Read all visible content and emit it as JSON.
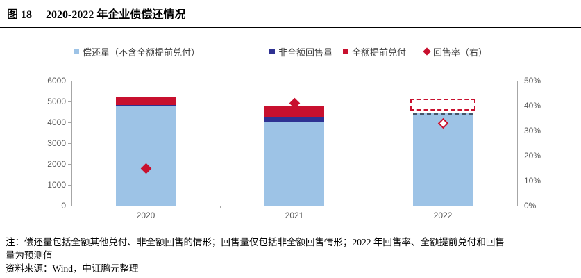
{
  "figure": {
    "label": "图 18",
    "title": "2020-2022 年企业债偿还情况"
  },
  "legend": [
    {
      "name": "偿还量（不含全额提前兑付）",
      "marker": "square",
      "color_key": "light_blue"
    },
    {
      "name": "非全额回售量",
      "marker": "square",
      "color_key": "navy"
    },
    {
      "name": "全额提前兑付",
      "marker": "square",
      "color_key": "red"
    },
    {
      "name": "回售率（右）",
      "marker": "diamond",
      "color_key": "red"
    }
  ],
  "colors": {
    "light_blue": "#9dc3e6",
    "navy": "#2e3192",
    "red": "#c8102e",
    "forecast_top_border": "#44546a",
    "axis_line": "#a6a6a6",
    "tick_text": "#595959"
  },
  "chart_data": {
    "type": "bar",
    "subtype": "stacked-bars-with-right-axis-scatter",
    "categories": [
      "2020",
      "2021",
      "2022"
    ],
    "series": [
      {
        "name": "偿还量（不含全额提前兑付）",
        "color_key": "light_blue",
        "values": [
          4780,
          4000,
          4450
        ]
      },
      {
        "name": "非全额回售量",
        "color_key": "navy",
        "values": [
          70,
          270,
          0
        ]
      },
      {
        "name": "全额提前兑付",
        "color_key": "red",
        "values": [
          350,
          500,
          550
        ]
      }
    ],
    "scatter": {
      "name": "回售率（右）",
      "axis": "right",
      "values_pct": [
        15,
        41,
        33
      ],
      "hollow": [
        false,
        false,
        true
      ]
    },
    "forecast_category_index": 2,
    "left_axis": {
      "ticks": [
        0,
        1000,
        2000,
        3000,
        4000,
        5000,
        6000
      ],
      "max": 6000
    },
    "right_axis": {
      "ticks": [
        "0%",
        "10%",
        "20%",
        "30%",
        "40%",
        "50%"
      ],
      "max_pct": 50
    },
    "grid": false,
    "legend_position": "top"
  },
  "notes": {
    "line1": "注：偿还量包括全额其他兑付、非全额回售的情形；回售量仅包括非全额回售情形；2022 年回售率、全额提前兑付和回售",
    "line2": "量为预测值",
    "source": "资料来源：Wind，中证鹏元整理"
  }
}
